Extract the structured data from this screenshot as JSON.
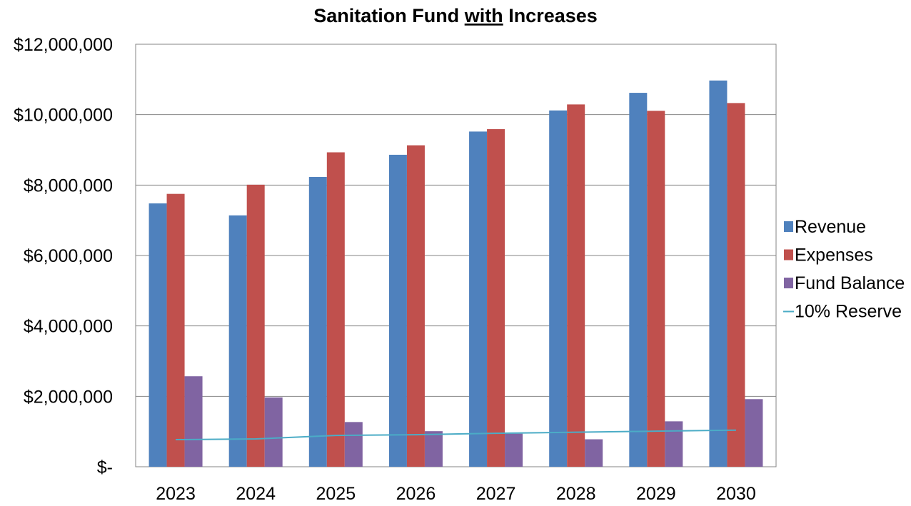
{
  "chart_data": {
    "type": "bar",
    "title_parts": [
      "Sanitation Fund ",
      "with",
      " Increases"
    ],
    "categories": [
      "2023",
      "2024",
      "2025",
      "2026",
      "2027",
      "2028",
      "2029",
      "2030"
    ],
    "ylim": [
      0,
      12000000
    ],
    "ytick_values": [
      0,
      2000000,
      4000000,
      6000000,
      8000000,
      10000000,
      12000000
    ],
    "ytick_labels": [
      "$-",
      "$2,000,000",
      "$4,000,000",
      "$6,000,000",
      "$8,000,000",
      "$10,000,000",
      "$12,000,000"
    ],
    "grid": true,
    "legend_position": "right",
    "series": [
      {
        "name": "Revenue",
        "kind": "bar",
        "color": "#4F81BD",
        "values": [
          7480000,
          7140000,
          8230000,
          8860000,
          9520000,
          10120000,
          10620000,
          10970000
        ]
      },
      {
        "name": "Expenses",
        "kind": "bar",
        "color": "#C0504D",
        "values": [
          7750000,
          8010000,
          8930000,
          9130000,
          9590000,
          10290000,
          10110000,
          10330000
        ]
      },
      {
        "name": "Fund Balance",
        "kind": "bar",
        "color": "#8064A2",
        "values": [
          2570000,
          1970000,
          1270000,
          1010000,
          940000,
          780000,
          1290000,
          1920000
        ]
      },
      {
        "name": "10% Reserve",
        "kind": "line",
        "color": "#4BACC6",
        "values": [
          770000,
          790000,
          890000,
          910000,
          950000,
          980000,
          1010000,
          1040000
        ]
      }
    ]
  }
}
